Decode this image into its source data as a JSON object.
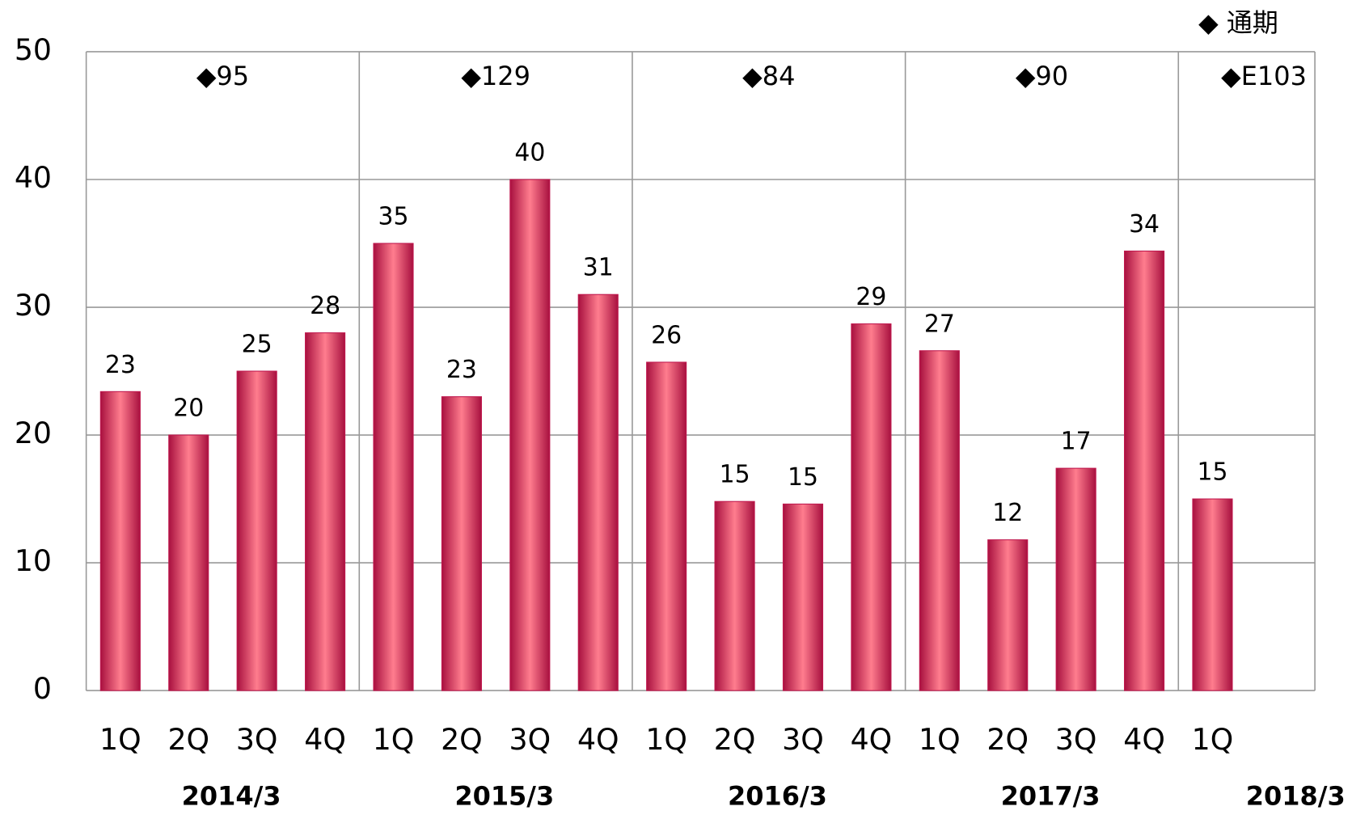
{
  "chart_data": {
    "type": "bar",
    "categories": [
      "1Q",
      "2Q",
      "3Q",
      "4Q",
      "1Q",
      "2Q",
      "3Q",
      "4Q",
      "1Q",
      "2Q",
      "3Q",
      "4Q",
      "1Q",
      "2Q",
      "3Q",
      "4Q",
      "1Q",
      null
    ],
    "values": [
      23.4,
      20,
      25,
      28,
      35,
      23,
      40,
      31,
      25.7,
      14.8,
      14.6,
      28.7,
      26.6,
      11.8,
      17.4,
      34.4,
      15,
      null
    ],
    "value_labels": [
      "23",
      "20",
      "25",
      "28",
      "35",
      "23",
      "40",
      "31",
      "26",
      "15",
      "15",
      "29",
      "27",
      "12",
      "17",
      "34",
      "15",
      null
    ],
    "groups": [
      "2014/3",
      "2015/3",
      "2016/3",
      "2017/3",
      "2018/3"
    ],
    "annotations": [
      "◆95",
      "◆129",
      "◆84",
      "◆90",
      "◆E103"
    ],
    "legend": "◆ 通期",
    "ylim": [
      0,
      50
    ],
    "yticks": [
      0,
      10,
      20,
      30,
      40,
      50
    ],
    "grid": true,
    "color": "#c0184e"
  }
}
